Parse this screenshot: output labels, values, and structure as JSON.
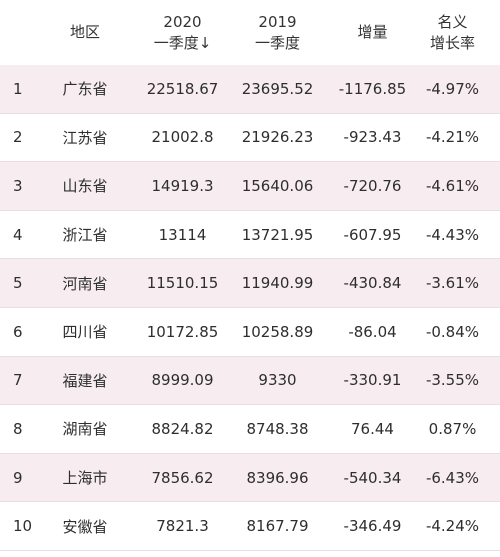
{
  "header": {
    "region": "地区",
    "v2020_line1": "2020",
    "v2020_line2": "一季度↓",
    "v2019_line1": "2019",
    "v2019_line2": "一季度",
    "increase": "增量",
    "rate_line1": "名义",
    "rate_line2": "增长率"
  },
  "rows": [
    {
      "rank": "1",
      "region": "广东省",
      "v2020": "22518.67",
      "v2019": "23695.52",
      "increase": "-1176.85",
      "rate": "-4.97%"
    },
    {
      "rank": "2",
      "region": "江苏省",
      "v2020": "21002.8",
      "v2019": "21926.23",
      "increase": "-923.43",
      "rate": "-4.21%"
    },
    {
      "rank": "3",
      "region": "山东省",
      "v2020": "14919.3",
      "v2019": "15640.06",
      "increase": "-720.76",
      "rate": "-4.61%"
    },
    {
      "rank": "4",
      "region": "浙江省",
      "v2020": "13114",
      "v2019": "13721.95",
      "increase": "-607.95",
      "rate": "-4.43%"
    },
    {
      "rank": "5",
      "region": "河南省",
      "v2020": "11510.15",
      "v2019": "11940.99",
      "increase": "-430.84",
      "rate": "-3.61%"
    },
    {
      "rank": "6",
      "region": "四川省",
      "v2020": "10172.85",
      "v2019": "10258.89",
      "increase": "-86.04",
      "rate": "-0.84%"
    },
    {
      "rank": "7",
      "region": "福建省",
      "v2020": "8999.09",
      "v2019": "9330",
      "increase": "-330.91",
      "rate": "-3.55%"
    },
    {
      "rank": "8",
      "region": "湖南省",
      "v2020": "8824.82",
      "v2019": "8748.38",
      "increase": "76.44",
      "rate": "0.87%"
    },
    {
      "rank": "9",
      "region": "上海市",
      "v2020": "7856.62",
      "v2019": "8396.96",
      "increase": "-540.34",
      "rate": "-6.43%"
    },
    {
      "rank": "10",
      "region": "安徽省",
      "v2020": "7821.3",
      "v2019": "8167.79",
      "increase": "-346.49",
      "rate": "-4.24%"
    }
  ],
  "colors": {
    "stripe": "#f7edf1",
    "divider": "#eadde3",
    "text": "#2e2e2e"
  }
}
